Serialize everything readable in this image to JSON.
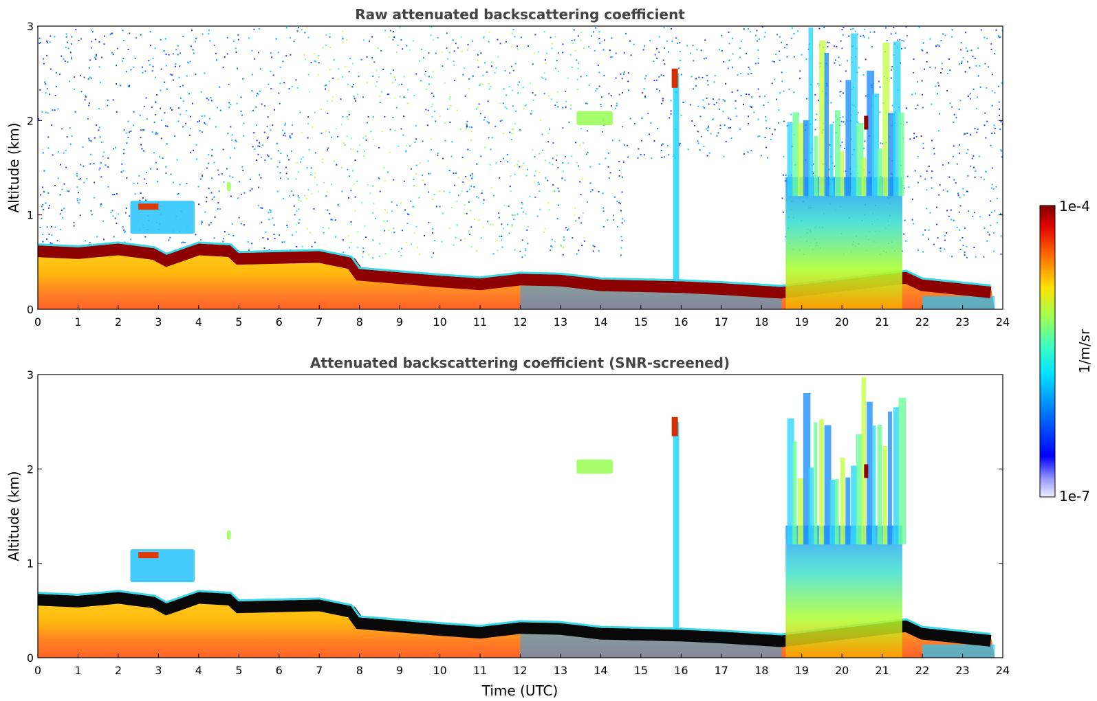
{
  "chart_data": [
    {
      "type": "heatmap",
      "title": "Raw attenuated backscattering coefficient",
      "xlabel": "",
      "ylabel": "Altitude (km)",
      "xlim": [
        0,
        24
      ],
      "ylim": [
        0,
        3
      ],
      "x_ticks": [
        "0",
        "1",
        "2",
        "3",
        "4",
        "5",
        "6",
        "7",
        "8",
        "9",
        "10",
        "11",
        "12",
        "13",
        "14",
        "15",
        "16",
        "17",
        "18",
        "19",
        "20",
        "21",
        "22",
        "23",
        "24"
      ],
      "y_ticks": [
        "0",
        "1",
        "2",
        "3"
      ],
      "colorbar": {
        "label": "1/m/sr",
        "min_label": "1e-7",
        "max_label": "1e-4",
        "scale": "log",
        "colormap": "jet"
      },
      "features": {
        "boundary_layer_top_km": [
          [
            0,
            0.68
          ],
          [
            1,
            0.66
          ],
          [
            2,
            0.7
          ],
          [
            2.9,
            0.65
          ],
          [
            3.2,
            0.58
          ],
          [
            4,
            0.7
          ],
          [
            4.8,
            0.68
          ],
          [
            5,
            0.6
          ],
          [
            7,
            0.62
          ],
          [
            7.8,
            0.55
          ],
          [
            8,
            0.43
          ],
          [
            10,
            0.36
          ],
          [
            11,
            0.33
          ],
          [
            12,
            0.38
          ],
          [
            13,
            0.37
          ],
          [
            14,
            0.32
          ],
          [
            16,
            0.3
          ],
          [
            17,
            0.28
          ],
          [
            18.5,
            0.24
          ],
          [
            21.6,
            0.4
          ],
          [
            22,
            0.32
          ],
          [
            23.8,
            0.24
          ]
        ],
        "cloud_patches": [
          {
            "x": [
              2.3,
              3.9
            ],
            "y_km": [
              0.8,
              1.15
            ]
          },
          {
            "x": [
              4.7,
              4.8
            ],
            "y_km": [
              1.25,
              1.35
            ]
          },
          {
            "x": [
              13.4,
              14.3
            ],
            "y_km": [
              1.95,
              2.1
            ]
          },
          {
            "x": [
              15.8,
              15.95
            ],
            "y_km": [
              0.3,
              2.5
            ]
          },
          {
            "x": [
              18.6,
              21.5
            ],
            "y_km": [
              0.3,
              3.0
            ]
          }
        ]
      }
    },
    {
      "type": "heatmap",
      "title": "Attenuated backscattering coefficient (SNR-screened)",
      "xlabel": "Time (UTC)",
      "ylabel": "Altitude (km)",
      "xlim": [
        0,
        24
      ],
      "ylim": [
        0,
        3
      ],
      "x_ticks": [
        "0",
        "1",
        "2",
        "3",
        "4",
        "5",
        "6",
        "7",
        "8",
        "9",
        "10",
        "11",
        "12",
        "13",
        "14",
        "15",
        "16",
        "17",
        "18",
        "19",
        "20",
        "21",
        "22",
        "23",
        "24"
      ],
      "y_ticks": [
        "0",
        "1",
        "2",
        "3"
      ],
      "colorbar": {
        "label": "1/m/sr",
        "min_label": "1e-7",
        "max_label": "1e-4",
        "scale": "log",
        "colormap": "jet"
      }
    }
  ]
}
